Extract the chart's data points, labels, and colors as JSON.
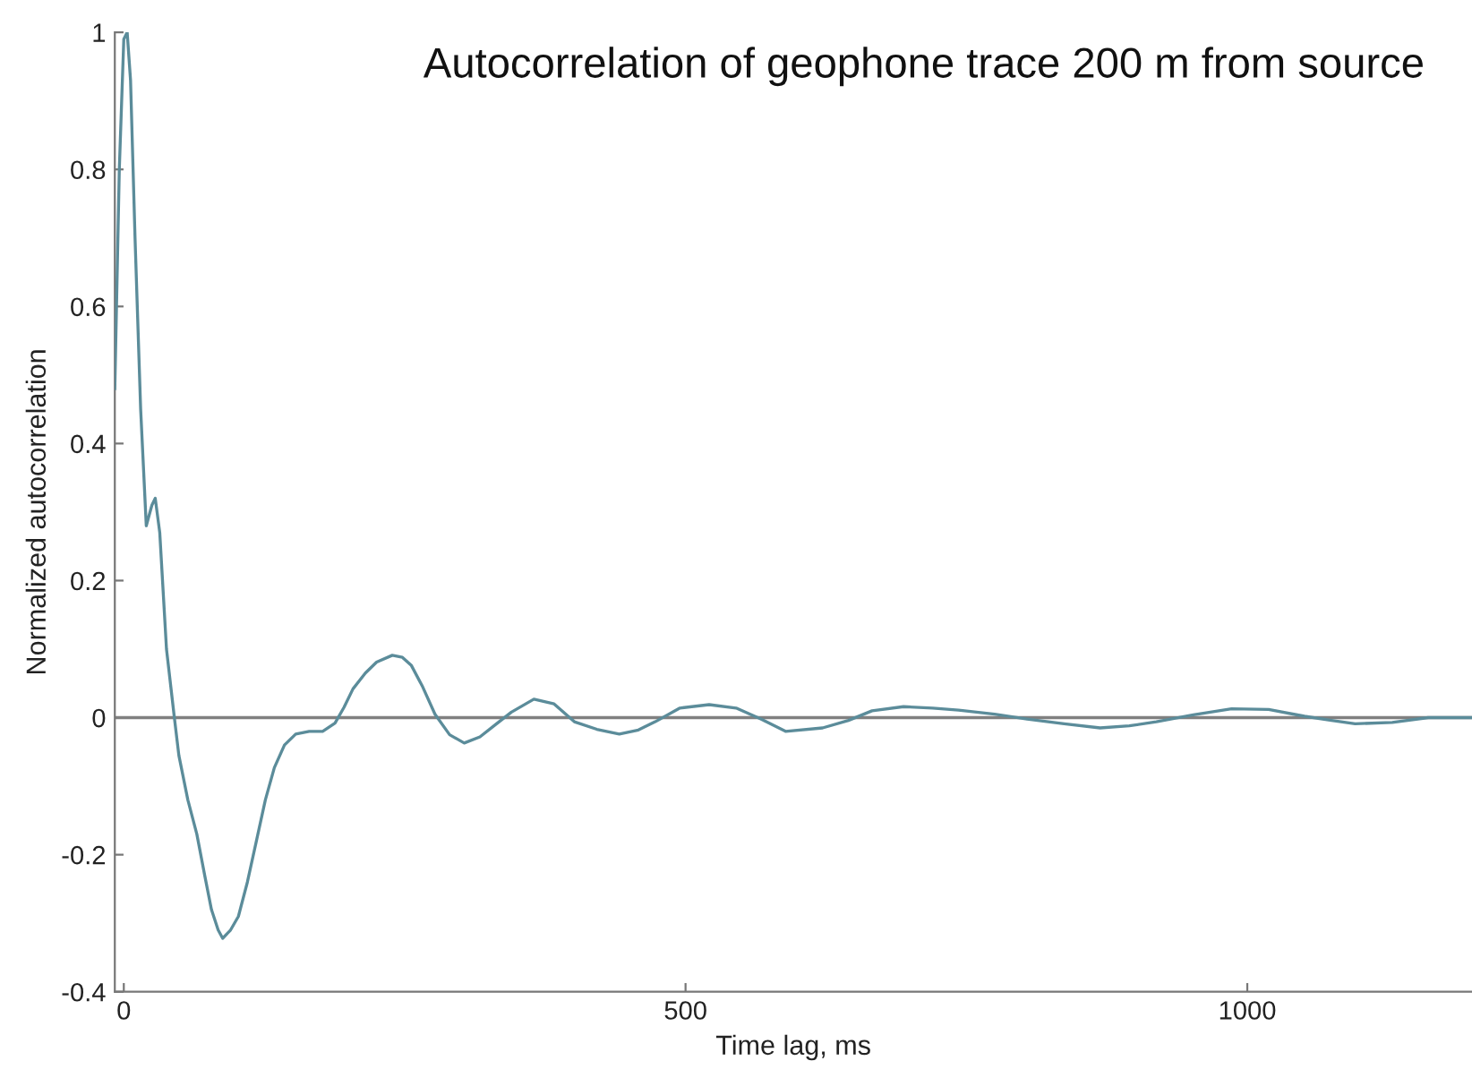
{
  "chart_data": {
    "type": "line",
    "title": "Autocorrelation of geophone trace 200 m from source",
    "xlabel": "Time lag, ms",
    "ylabel": "Normalized autocorrelation",
    "series": [
      {
        "color": "#5b8c9a",
        "x": [
          -8,
          -4,
          0,
          3,
          6,
          10,
          15,
          20,
          25,
          28,
          32,
          38,
          45,
          49,
          57,
          65,
          72,
          78,
          84,
          88,
          95,
          102,
          110,
          118,
          126,
          134,
          143,
          153,
          165,
          177,
          188,
          196,
          204,
          215,
          225,
          239,
          248,
          256,
          266,
          277,
          290,
          303,
          317,
          331,
          345,
          365,
          383,
          401,
          421,
          441,
          458,
          473,
          495,
          521,
          545,
          567,
          589,
          622,
          645,
          666,
          694,
          720,
          743,
          775,
          804,
          837,
          869,
          895,
          919,
          952,
          986,
          1019,
          1051,
          1075,
          1096,
          1129,
          1161,
          1199
        ],
        "values": [
          0.48,
          0.8,
          0.99,
          1.0,
          0.93,
          0.7,
          0.45,
          0.28,
          0.31,
          0.32,
          0.27,
          0.1,
          0.0,
          -0.055,
          -0.12,
          -0.17,
          -0.23,
          -0.28,
          -0.31,
          -0.322,
          -0.31,
          -0.29,
          -0.24,
          -0.18,
          -0.12,
          -0.073,
          -0.04,
          -0.024,
          -0.02,
          -0.02,
          -0.008,
          0.015,
          0.042,
          0.065,
          0.081,
          0.091,
          0.088,
          0.076,
          0.045,
          0.005,
          -0.025,
          -0.037,
          -0.028,
          -0.01,
          0.008,
          0.027,
          0.02,
          -0.006,
          -0.017,
          -0.024,
          -0.018,
          -0.006,
          0.014,
          0.019,
          0.014,
          -0.002,
          -0.02,
          -0.015,
          -0.004,
          0.01,
          0.016,
          0.014,
          0.011,
          0.005,
          -0.002,
          -0.009,
          -0.015,
          -0.012,
          -0.006,
          0.004,
          0.013,
          0.012,
          0.002,
          -0.004,
          -0.009,
          -0.007,
          0.0,
          0.0
        ]
      }
    ],
    "xlim": [
      -8,
      1200
    ],
    "xticks": [
      0,
      500,
      1000
    ],
    "ylim": [
      -0.4,
      1
    ],
    "yticks": [
      -0.4,
      -0.2,
      0,
      0.2,
      0.4,
      0.6,
      0.8,
      1
    ],
    "ref_lines": [
      {
        "axis": "y",
        "value": 0,
        "color": "#808080"
      }
    ],
    "grid": false,
    "legend": false,
    "marker": "none",
    "line_style": "solid"
  }
}
